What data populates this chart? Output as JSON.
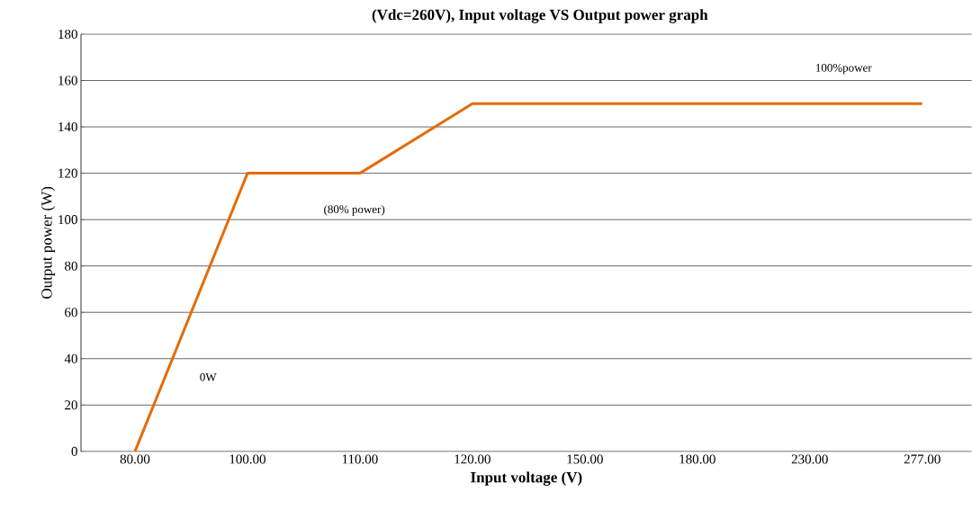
{
  "chart_data": {
    "type": "line",
    "title": "(Vdc=260V), Input voltage VS Output power graph",
    "xlabel": "Input voltage (V)",
    "ylabel": "Output power (W)",
    "categories": [
      "80.00",
      "100.00",
      "110.00",
      "120.00",
      "150.00",
      "180.00",
      "230.00",
      "277.00"
    ],
    "values": [
      0,
      120,
      120,
      150,
      150,
      150,
      150,
      150
    ],
    "color": "#e46c0a",
    "ylim": [
      0,
      180
    ],
    "yticks": [
      0,
      20,
      40,
      60,
      80,
      100,
      120,
      140,
      160,
      180
    ],
    "grid": "y",
    "marker": "none",
    "line_style": "solid",
    "annotations": [
      "100%power",
      "(80% power)",
      "0W"
    ]
  }
}
